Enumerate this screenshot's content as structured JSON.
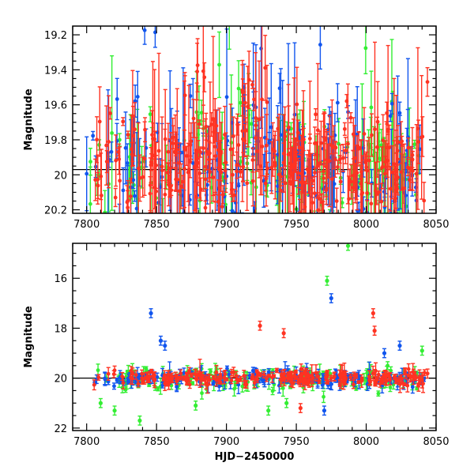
{
  "chart_data": [
    {
      "type": "scatter",
      "panel": "top",
      "xlabel": "",
      "ylabel": "Magnitude",
      "xlim": [
        7790,
        8050
      ],
      "ylim": [
        20.22,
        19.15
      ],
      "y_inverted": true,
      "xticks": [
        7800,
        7850,
        7900,
        7950,
        8000,
        8050
      ],
      "yticks": [
        19.2,
        19.4,
        19.6,
        19.8,
        20,
        20.2
      ],
      "reference_line": 19.97,
      "error_bars": true,
      "series": [
        {
          "color": "#33ee33",
          "x_range": [
            7800,
            8040
          ],
          "typical_mag": 19.95,
          "scatter": 0.2
        },
        {
          "color": "#1155ee",
          "x_range": [
            7800,
            8043
          ],
          "typical_mag": 19.95,
          "scatter": 0.2
        },
        {
          "color": "#ff3322",
          "x_range": [
            7805,
            8045
          ],
          "typical_mag": 19.95,
          "scatter": 0.15
        }
      ]
    },
    {
      "type": "scatter",
      "panel": "bottom",
      "xlabel": "HJD−2450000",
      "ylabel": "Magnitude",
      "xlim": [
        7790,
        8050
      ],
      "ylim": [
        22.1,
        14.6
      ],
      "y_inverted": true,
      "xticks": [
        7800,
        7850,
        7900,
        7950,
        8000,
        8050
      ],
      "yticks": [
        16,
        18,
        20,
        22
      ],
      "reference_line": 20,
      "error_bars": true,
      "series": [
        {
          "color": "#33ee33",
          "x_range": [
            7800,
            8040
          ],
          "typical_mag": 20.05,
          "scatter": 0.3
        },
        {
          "color": "#1155ee",
          "x_range": [
            7805,
            8045
          ],
          "typical_mag": 20.0,
          "scatter": 0.2
        },
        {
          "color": "#ff3322",
          "x_range": [
            7805,
            8045
          ],
          "typical_mag": 20.0,
          "scatter": 0.2
        }
      ],
      "outliers": [
        {
          "x": 7987,
          "y": 14.7,
          "color": "#33ee33"
        },
        {
          "x": 7972,
          "y": 16.1,
          "color": "#33ee33"
        },
        {
          "x": 7975,
          "y": 16.8,
          "color": "#1155ee"
        },
        {
          "x": 7846,
          "y": 17.4,
          "color": "#1155ee"
        },
        {
          "x": 8005,
          "y": 17.4,
          "color": "#ff3322"
        },
        {
          "x": 8006,
          "y": 18.1,
          "color": "#ff3322"
        },
        {
          "x": 7924,
          "y": 17.9,
          "color": "#ff3322"
        },
        {
          "x": 7941,
          "y": 18.2,
          "color": "#ff3322"
        },
        {
          "x": 7853,
          "y": 18.5,
          "color": "#1155ee"
        },
        {
          "x": 7856,
          "y": 18.7,
          "color": "#1155ee"
        },
        {
          "x": 8024,
          "y": 18.7,
          "color": "#1155ee"
        },
        {
          "x": 8040,
          "y": 18.9,
          "color": "#33ee33"
        },
        {
          "x": 8013,
          "y": 19.0,
          "color": "#1155ee"
        },
        {
          "x": 7838,
          "y": 21.7,
          "color": "#33ee33"
        },
        {
          "x": 7820,
          "y": 21.3,
          "color": "#33ee33"
        },
        {
          "x": 7930,
          "y": 21.3,
          "color": "#33ee33"
        },
        {
          "x": 7970,
          "y": 21.3,
          "color": "#1155ee"
        },
        {
          "x": 7878,
          "y": 21.1,
          "color": "#33ee33"
        },
        {
          "x": 7943,
          "y": 21.0,
          "color": "#33ee33"
        },
        {
          "x": 7953,
          "y": 21.2,
          "color": "#ff3322"
        },
        {
          "x": 7810,
          "y": 21.0,
          "color": "#33ee33"
        }
      ]
    }
  ]
}
